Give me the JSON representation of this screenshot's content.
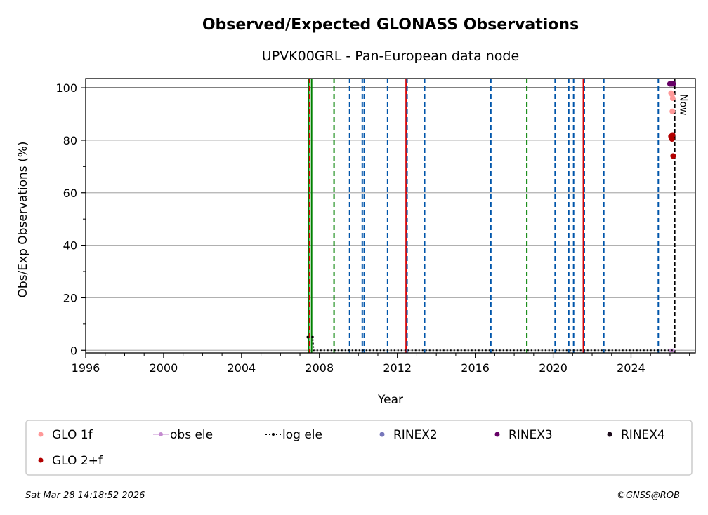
{
  "chart_data": {
    "type": "scatter",
    "title": "Observed/Expected GLONASS Observations",
    "subtitle": "UPVK00GRL - Pan-European data node",
    "xlabel": "Year",
    "ylabel": "Obs/Exp Observations (%)",
    "xlim": [
      1996,
      2027.3
    ],
    "ylim": [
      -1,
      103.5
    ],
    "xticks": [
      "1996",
      "2000",
      "2004",
      "2008",
      "2012",
      "2016",
      "2020",
      "2024"
    ],
    "xtick_values": [
      1996,
      2000,
      2004,
      2008,
      2012,
      2016,
      2020,
      2024
    ],
    "yticks": [
      "0",
      "20",
      "40",
      "60",
      "80",
      "100"
    ],
    "ytick_values": [
      0,
      20,
      40,
      60,
      80,
      100
    ],
    "grid": "horizontal",
    "reference_line_y": 100,
    "vlines": [
      {
        "x": 2007.45,
        "color": "#008000",
        "style": "solid"
      },
      {
        "x": 2007.6,
        "color": "#008000",
        "style": "solid"
      },
      {
        "x": 2007.5,
        "color": "#e00000",
        "style": "dashed"
      },
      {
        "x": 2008.75,
        "color": "#008000",
        "style": "dashed"
      },
      {
        "x": 2009.55,
        "color": "#0055aa",
        "style": "dashed"
      },
      {
        "x": 2010.2,
        "color": "#0055aa",
        "style": "dashed"
      },
      {
        "x": 2010.3,
        "color": "#0055aa",
        "style": "dashed"
      },
      {
        "x": 2011.5,
        "color": "#0055aa",
        "style": "dashed"
      },
      {
        "x": 2012.45,
        "color": "#e00000",
        "style": "solid"
      },
      {
        "x": 2012.5,
        "color": "#0055aa",
        "style": "dashed"
      },
      {
        "x": 2013.4,
        "color": "#0055aa",
        "style": "dashed"
      },
      {
        "x": 2016.8,
        "color": "#0055aa",
        "style": "dashed"
      },
      {
        "x": 2018.65,
        "color": "#008000",
        "style": "dashed"
      },
      {
        "x": 2020.1,
        "color": "#0055aa",
        "style": "dashed"
      },
      {
        "x": 2020.8,
        "color": "#0055aa",
        "style": "dashed"
      },
      {
        "x": 2021.05,
        "color": "#0055aa",
        "style": "dashed"
      },
      {
        "x": 2021.55,
        "color": "#e00000",
        "style": "solid"
      },
      {
        "x": 2021.6,
        "color": "#0055aa",
        "style": "dashed"
      },
      {
        "x": 2022.6,
        "color": "#0055aa",
        "style": "dashed"
      },
      {
        "x": 2025.4,
        "color": "#0055aa",
        "style": "dashed"
      }
    ],
    "now": {
      "x": 2026.24,
      "label": "Now"
    },
    "series": [
      {
        "name": "GLO 1f",
        "color": "#ff9999",
        "marker": "dot",
        "points": [
          [
            2026.05,
            98
          ],
          [
            2026.1,
            97.5
          ],
          [
            2026.12,
            91
          ],
          [
            2026.14,
            96
          ]
        ]
      },
      {
        "name": "GLO 2+f",
        "color": "#b20000",
        "marker": "dot",
        "points": [
          [
            2026.05,
            81.5
          ],
          [
            2026.1,
            80.5
          ],
          [
            2026.13,
            82
          ],
          [
            2026.16,
            74
          ]
        ]
      },
      {
        "name": "obs ele",
        "color": "#c48bd0",
        "marker": "line-dot",
        "points": [
          [
            2026.05,
            0
          ],
          [
            2026.15,
            0
          ]
        ]
      },
      {
        "name": "log ele",
        "color": "#000000",
        "marker": "dotted-line",
        "points": [
          [
            2007.4,
            5
          ],
          [
            2007.65,
            5
          ],
          [
            2007.7,
            0
          ],
          [
            2026.24,
            0
          ]
        ]
      },
      {
        "name": "RINEX2",
        "color": "#7777bb",
        "marker": "dot",
        "points": []
      },
      {
        "name": "RINEX3",
        "color": "#660066",
        "marker": "dot",
        "points": [
          [
            2026.0,
            101.5
          ],
          [
            2026.08,
            101.5
          ],
          [
            2026.16,
            101.5
          ]
        ]
      },
      {
        "name": "RINEX4",
        "color": "#1a0a1a",
        "marker": "dot",
        "points": []
      }
    ],
    "legend": [
      "GLO 1f",
      "obs ele",
      "log ele",
      "RINEX2",
      "RINEX3",
      "RINEX4",
      "GLO 2+f"
    ],
    "legend_placement": "bottom"
  },
  "footer": {
    "timestamp": "Sat Mar 28 14:18:52 2026",
    "credit": "©GNSS@ROB"
  }
}
